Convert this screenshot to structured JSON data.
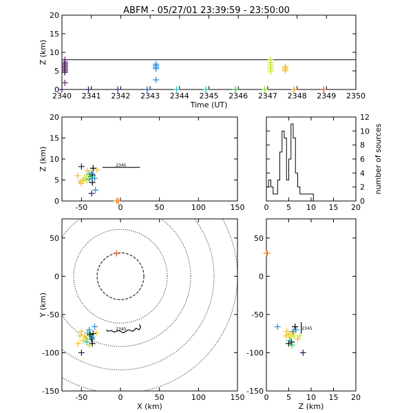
{
  "chart_data": [
    {
      "id": "time_height",
      "type": "scatter",
      "title": "ABFM - 05/27/01 23:39:59 - 23:50:00",
      "xlabel": "Time (UT)",
      "ylabel": "Z (km)",
      "xlim": [
        2340,
        2350
      ],
      "ylim": [
        0,
        20
      ],
      "xticks": [
        "2340",
        "2341",
        "2342",
        "2343",
        "2344",
        "2345",
        "2346",
        "2347",
        "2348",
        "2349",
        "2350"
      ],
      "yticks": [
        "0",
        "5",
        "10",
        "15",
        "20"
      ],
      "reference_line_z": 8,
      "marker": "plus",
      "points": [
        {
          "x": 2340.1,
          "y": 8.0,
          "c": "#5a1a6e"
        },
        {
          "x": 2340.1,
          "y": 7.4,
          "c": "#5a1a6e"
        },
        {
          "x": 2340.1,
          "y": 7.0,
          "c": "#3c0a4e"
        },
        {
          "x": 2340.1,
          "y": 6.6,
          "c": "#3c0a4e"
        },
        {
          "x": 2340.1,
          "y": 6.2,
          "c": "#3c0a4e"
        },
        {
          "x": 2340.1,
          "y": 5.8,
          "c": "#3c0a4e"
        },
        {
          "x": 2340.1,
          "y": 5.4,
          "c": "#3c0a4e"
        },
        {
          "x": 2340.1,
          "y": 5.0,
          "c": "#3c0a4e"
        },
        {
          "x": 2340.1,
          "y": 4.6,
          "c": "#3c0a4e"
        },
        {
          "x": 2340.1,
          "y": 1.8,
          "c": "#5a1a6e"
        },
        {
          "x": 2340.0,
          "y": 0.0,
          "c": "#3c0a4e"
        },
        {
          "x": 2340.9,
          "y": 0.0,
          "c": "#2a0a5e"
        },
        {
          "x": 2341.9,
          "y": 0.0,
          "c": "#1a1a8e"
        },
        {
          "x": 2342.9,
          "y": 0.0,
          "c": "#2a4ab8"
        },
        {
          "x": 2343.2,
          "y": 6.8,
          "c": "#1e8ad8"
        },
        {
          "x": 2343.2,
          "y": 6.4,
          "c": "#1e8ad8"
        },
        {
          "x": 2343.2,
          "y": 6.0,
          "c": "#1e8ad8"
        },
        {
          "x": 2343.2,
          "y": 5.6,
          "c": "#1e8ad8"
        },
        {
          "x": 2343.2,
          "y": 2.6,
          "c": "#1e8ad8"
        },
        {
          "x": 2343.9,
          "y": 0.0,
          "c": "#19c0d8"
        },
        {
          "x": 2344.9,
          "y": 0.0,
          "c": "#19c0b0"
        },
        {
          "x": 2345.9,
          "y": 0.0,
          "c": "#18c040"
        },
        {
          "x": 2346.9,
          "y": 0.0,
          "c": "#8ad820"
        },
        {
          "x": 2347.1,
          "y": 8.0,
          "c": "#c8e020"
        },
        {
          "x": 2347.1,
          "y": 7.2,
          "c": "#c8e020"
        },
        {
          "x": 2347.1,
          "y": 6.6,
          "c": "#c8e020"
        },
        {
          "x": 2347.1,
          "y": 6.0,
          "c": "#c8e020"
        },
        {
          "x": 2347.1,
          "y": 5.4,
          "c": "#c8e020"
        },
        {
          "x": 2347.1,
          "y": 4.8,
          "c": "#c8e020"
        },
        {
          "x": 2347.6,
          "y": 6.2,
          "c": "#f0c020"
        },
        {
          "x": 2347.6,
          "y": 5.8,
          "c": "#f0c020"
        },
        {
          "x": 2347.6,
          "y": 5.4,
          "c": "#f0c020"
        },
        {
          "x": 2347.6,
          "y": 5.0,
          "c": "#f0c020"
        },
        {
          "x": 2347.9,
          "y": 0.0,
          "c": "#f09020"
        },
        {
          "x": 2348.9,
          "y": 0.0,
          "c": "#e04818"
        }
      ]
    },
    {
      "id": "xz",
      "type": "scatter",
      "xlabel": "",
      "ylabel": "Z (km)",
      "xlim": [
        -75,
        150
      ],
      "ylim": [
        0,
        20
      ],
      "xticks": [
        "-50",
        "0",
        "50",
        "100",
        "150"
      ],
      "yticks": [
        "0",
        "5",
        "10",
        "15",
        "20"
      ],
      "marker": "plus",
      "track_label": "2345",
      "points": [
        {
          "x": -50,
          "y": 8.2,
          "c": "#3c0a4e"
        },
        {
          "x": -35,
          "y": 7.8,
          "c": "#000000"
        },
        {
          "x": -36,
          "y": 6.2,
          "c": "#000000"
        },
        {
          "x": -30,
          "y": 7.4,
          "c": "#f0c020"
        },
        {
          "x": -33,
          "y": 5.4,
          "c": "#1e8ad8"
        },
        {
          "x": -37,
          "y": 6.6,
          "c": "#1e8ad8"
        },
        {
          "x": -38,
          "y": 5.8,
          "c": "#18c040"
        },
        {
          "x": -40,
          "y": 6.4,
          "c": "#19c0b0"
        },
        {
          "x": -42,
          "y": 7.2,
          "c": "#f0c020"
        },
        {
          "x": -44,
          "y": 6.0,
          "c": "#c8e020"
        },
        {
          "x": -46,
          "y": 5.4,
          "c": "#c8e020"
        },
        {
          "x": -48,
          "y": 5.0,
          "c": "#f0c020"
        },
        {
          "x": -52,
          "y": 4.6,
          "c": "#f0c020"
        },
        {
          "x": -50,
          "y": 4.2,
          "c": "#f0c020"
        },
        {
          "x": -43,
          "y": 4.8,
          "c": "#c8e020"
        },
        {
          "x": -40,
          "y": 5.2,
          "c": "#1e8ad8"
        },
        {
          "x": -36,
          "y": 4.4,
          "c": "#000000"
        },
        {
          "x": -32,
          "y": 2.6,
          "c": "#1e8ad8"
        },
        {
          "x": -37,
          "y": 1.8,
          "c": "#3c0a4e"
        },
        {
          "x": -55,
          "y": 6.0,
          "c": "#f0c020"
        },
        {
          "x": -3,
          "y": 0.0,
          "c": "#e04818"
        },
        {
          "x": -5,
          "y": 0.0,
          "c": "#f09020"
        }
      ]
    },
    {
      "id": "histogram",
      "type": "bar",
      "xlabel": "",
      "ylabel": "number of sources",
      "xlim": [
        0,
        20
      ],
      "ylim": [
        0,
        12
      ],
      "xticks": [
        "0",
        "5",
        "10",
        "15",
        "20"
      ],
      "yticks": [
        "0",
        "2",
        "4",
        "6",
        "8",
        "10",
        "12"
      ],
      "bin_start": 0,
      "bin_width": 0.5,
      "values": [
        2,
        3,
        2,
        1,
        1,
        3,
        7,
        10,
        9,
        3,
        6,
        11,
        9,
        4,
        2,
        1,
        1,
        1,
        1,
        1,
        1,
        0,
        0,
        0,
        0,
        0,
        0,
        0,
        0,
        0,
        0,
        0,
        0,
        0,
        0,
        0,
        0,
        0,
        0,
        0
      ]
    },
    {
      "id": "xy",
      "type": "scatter",
      "xlabel": "X (km)",
      "ylabel": "Y (km)",
      "xlim": [
        -75,
        150
      ],
      "ylim": [
        -150,
        75
      ],
      "xticks": [
        "-50",
        "0",
        "50",
        "100",
        "150"
      ],
      "yticks": [
        "-150",
        "-100",
        "-50",
        "0",
        "50"
      ],
      "marker": "plus",
      "range_rings_km": [
        30,
        60,
        90,
        120,
        150
      ],
      "track_label": "2345",
      "points": [
        {
          "x": -5,
          "y": 30,
          "c": "#e04818"
        },
        {
          "x": -50,
          "y": -100,
          "c": "#3c0a4e"
        },
        {
          "x": -35,
          "y": -75,
          "c": "#000000"
        },
        {
          "x": -37,
          "y": -82,
          "c": "#000000"
        },
        {
          "x": -36,
          "y": -88,
          "c": "#000000"
        },
        {
          "x": -40,
          "y": -70,
          "c": "#1e8ad8"
        },
        {
          "x": -33,
          "y": -66,
          "c": "#1e8ad8"
        },
        {
          "x": -38,
          "y": -78,
          "c": "#18c040"
        },
        {
          "x": -42,
          "y": -74,
          "c": "#19c0b0"
        },
        {
          "x": -44,
          "y": -82,
          "c": "#c8e020"
        },
        {
          "x": -46,
          "y": -78,
          "c": "#f0c020"
        },
        {
          "x": -48,
          "y": -84,
          "c": "#f0c020"
        },
        {
          "x": -50,
          "y": -72,
          "c": "#f0c020"
        },
        {
          "x": -52,
          "y": -78,
          "c": "#f0c020"
        },
        {
          "x": -54,
          "y": -88,
          "c": "#f0c020"
        },
        {
          "x": -40,
          "y": -90,
          "c": "#c8e020"
        },
        {
          "x": -36,
          "y": -80,
          "c": "#1e8ad8"
        },
        {
          "x": -39,
          "y": -76,
          "c": "#000000"
        },
        {
          "x": -31,
          "y": -74,
          "c": "#f0c020"
        },
        {
          "x": -43,
          "y": -86,
          "c": "#19c0b0"
        }
      ]
    },
    {
      "id": "zy",
      "type": "scatter",
      "xlabel": "Z (km)",
      "ylabel": "",
      "xlim": [
        0,
        20
      ],
      "ylim": [
        -150,
        75
      ],
      "xticks": [
        "0",
        "5",
        "10",
        "15",
        "20"
      ],
      "yticks": [
        "-150",
        "-100",
        "-50",
        "0",
        "50"
      ],
      "marker": "plus",
      "track_label": "2345",
      "points": [
        {
          "x": 0.2,
          "y": 30,
          "c": "#e04818"
        },
        {
          "x": 0.0,
          "y": 30,
          "c": "#f09020"
        },
        {
          "x": 8.2,
          "y": -100,
          "c": "#3c0a4e"
        },
        {
          "x": 2.5,
          "y": -66,
          "c": "#1e8ad8"
        },
        {
          "x": 5.0,
          "y": -88,
          "c": "#000000"
        },
        {
          "x": 5.6,
          "y": -86,
          "c": "#000000"
        },
        {
          "x": 4.6,
          "y": -72,
          "c": "#f0c020"
        },
        {
          "x": 5.0,
          "y": -76,
          "c": "#f0c020"
        },
        {
          "x": 5.4,
          "y": -80,
          "c": "#c8e020"
        },
        {
          "x": 5.8,
          "y": -74,
          "c": "#f0c020"
        },
        {
          "x": 6.2,
          "y": -78,
          "c": "#c8e020"
        },
        {
          "x": 6.6,
          "y": -70,
          "c": "#1e8ad8"
        },
        {
          "x": 7.0,
          "y": -82,
          "c": "#f0c020"
        },
        {
          "x": 5.2,
          "y": -84,
          "c": "#19c0b0"
        },
        {
          "x": 6.0,
          "y": -72,
          "c": "#1e8ad8"
        },
        {
          "x": 4.4,
          "y": -78,
          "c": "#f0c020"
        },
        {
          "x": 6.4,
          "y": -66,
          "c": "#000000"
        },
        {
          "x": 7.4,
          "y": -78,
          "c": "#c8e020"
        },
        {
          "x": 5.7,
          "y": -90,
          "c": "#18c040"
        }
      ]
    }
  ]
}
